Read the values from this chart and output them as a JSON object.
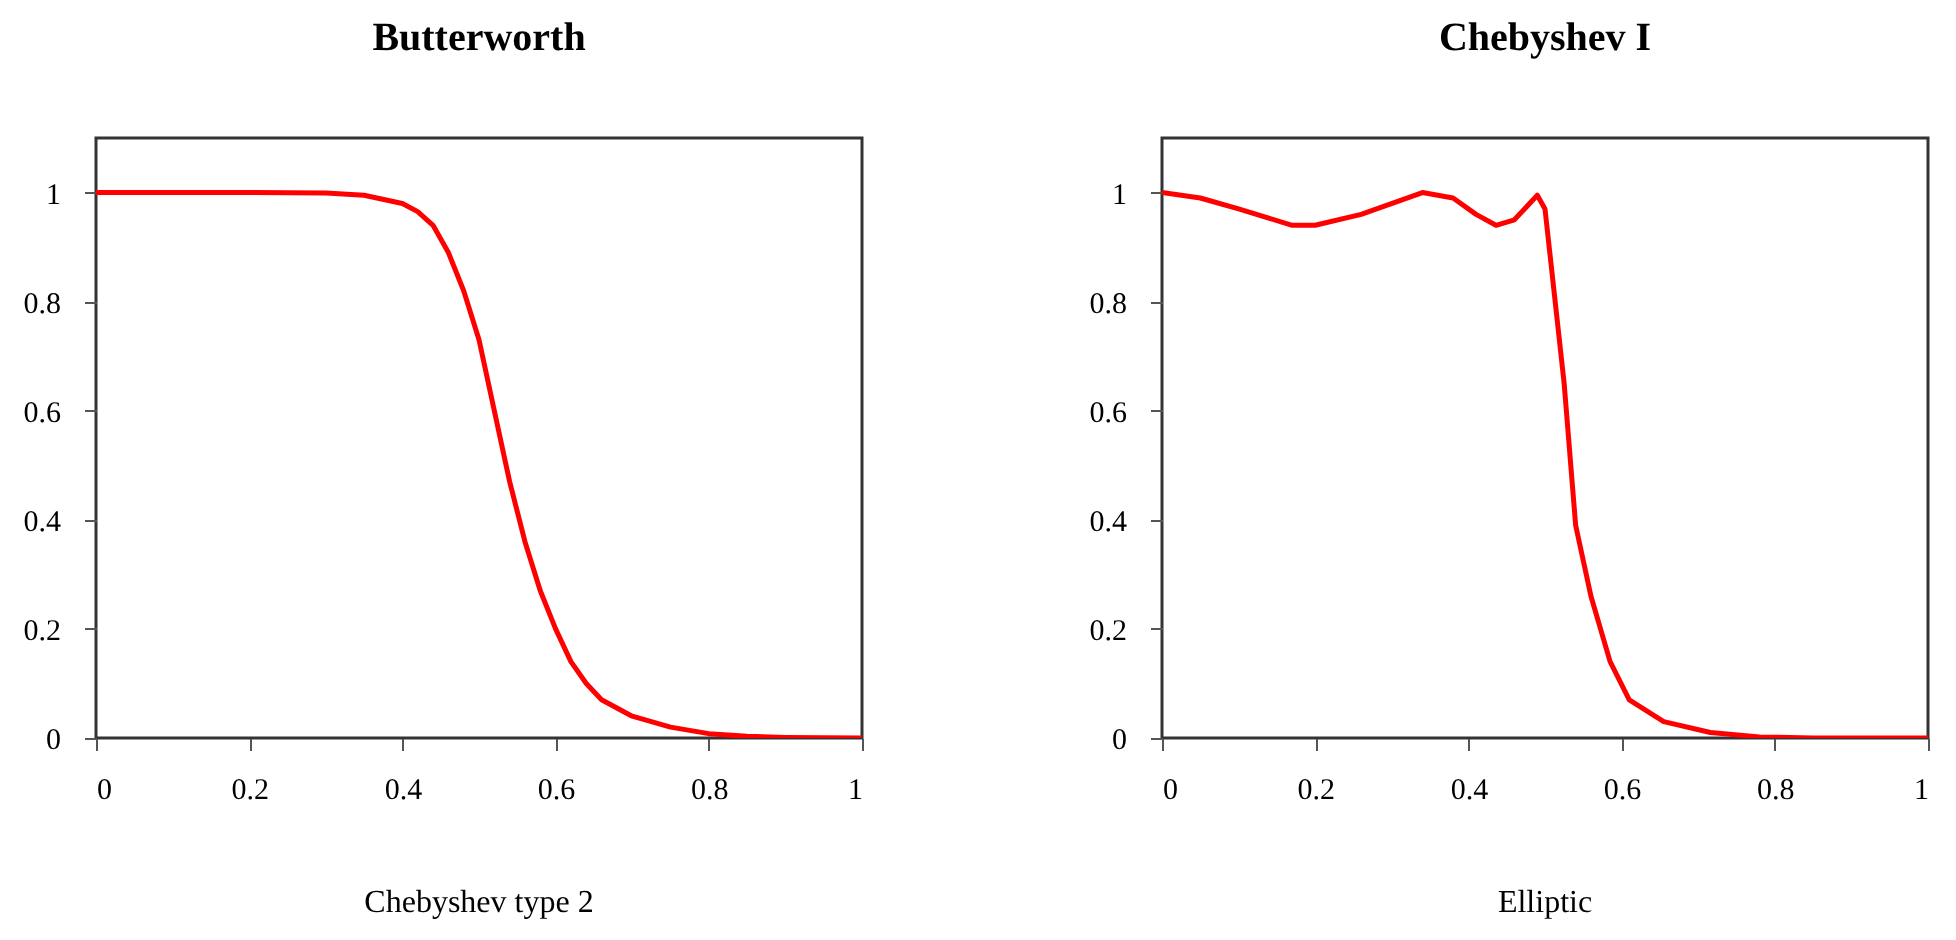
{
  "chart_data": [
    {
      "type": "line",
      "title": "Butterworth",
      "annotations": [
        "Chebyshev type 2"
      ],
      "grid": false,
      "marker": "none",
      "line_style": "solid",
      "xlim": [
        0,
        1
      ],
      "xticks": [
        0,
        0.2,
        0.4,
        0.6,
        0.8,
        1
      ],
      "ylim": [
        0,
        1.1
      ],
      "yticks": [
        0,
        0.2,
        0.4,
        0.6,
        0.8,
        1
      ],
      "x": [
        0,
        0.1,
        0.2,
        0.3,
        0.35,
        0.4,
        0.42,
        0.44,
        0.46,
        0.48,
        0.5,
        0.52,
        0.54,
        0.56,
        0.58,
        0.6,
        0.62,
        0.64,
        0.66,
        0.7,
        0.75,
        0.8,
        0.85,
        0.9,
        1
      ],
      "series": [
        {
          "color": "#ff0000",
          "values": [
            1,
            1,
            1,
            0.999,
            0.995,
            0.98,
            0.965,
            0.94,
            0.89,
            0.82,
            0.73,
            0.6,
            0.47,
            0.36,
            0.27,
            0.2,
            0.14,
            0.1,
            0.07,
            0.04,
            0.02,
            0.008,
            0.003,
            0.001,
            0
          ]
        }
      ]
    },
    {
      "type": "line",
      "title": "Chebyshev I",
      "annotations": [
        "Elliptic"
      ],
      "grid": false,
      "marker": "none",
      "line_style": "solid",
      "xlim": [
        0,
        1
      ],
      "xticks": [
        0,
        0.2,
        0.4,
        0.6,
        0.8,
        1
      ],
      "ylim": [
        0,
        1.1
      ],
      "yticks": [
        0,
        0.2,
        0.4,
        0.6,
        0.8,
        1
      ],
      "x": [
        0,
        0.05,
        0.1,
        0.17,
        0.2,
        0.26,
        0.34,
        0.38,
        0.41,
        0.436,
        0.46,
        0.49,
        0.5,
        0.525,
        0.54,
        0.56,
        0.585,
        0.61,
        0.655,
        0.716,
        0.78,
        0.85,
        1
      ],
      "series": [
        {
          "color": "#ff0000",
          "values": [
            1,
            0.99,
            0.97,
            0.94,
            0.94,
            0.96,
            1,
            0.99,
            0.96,
            0.94,
            0.95,
            0.995,
            0.97,
            0.65,
            0.39,
            0.26,
            0.14,
            0.07,
            0.03,
            0.01,
            0.002,
            0,
            0
          ]
        }
      ]
    }
  ]
}
